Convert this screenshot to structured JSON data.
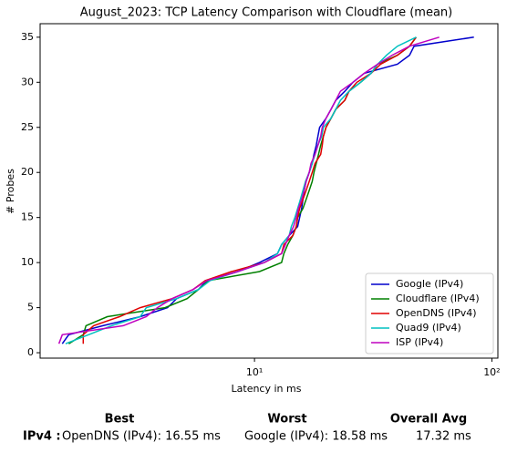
{
  "chart_data": {
    "type": "line",
    "title": "August_2023: TCP Latency Comparison with Cloudflare (mean)",
    "xlabel": "Latency in ms",
    "ylabel": "# Probes",
    "xscale": "log",
    "xlim": [
      1.25,
      106
    ],
    "xticks": [
      {
        "value": 10,
        "label": "10¹"
      },
      {
        "value": 100,
        "label": "10²"
      }
    ],
    "ylim": [
      -0.6,
      36.5
    ],
    "yticks": [
      0,
      5,
      10,
      15,
      20,
      25,
      30,
      35
    ],
    "legend": "lower right",
    "series": [
      {
        "name": "Google (IPv4)",
        "color": "#0000cc",
        "x": [
          1.55,
          1.65,
          2.3,
          3.3,
          4.3,
          4.7,
          5.8,
          6.3,
          8.5,
          10.5,
          12.5,
          13,
          14,
          15.2,
          15.5,
          15.8,
          16,
          16.2,
          16.5,
          17,
          17.5,
          17.8,
          18.2,
          18.5,
          18.8,
          20,
          21,
          22,
          24,
          26,
          29,
          40,
          45,
          47,
          84
        ],
        "values": [
          1,
          2,
          3,
          4,
          5,
          6,
          7,
          8,
          9,
          10,
          11,
          12,
          13,
          14,
          15,
          16,
          17,
          18,
          19,
          20,
          21,
          22,
          23,
          24,
          25,
          26,
          27,
          28,
          29,
          30,
          31,
          32,
          33,
          34,
          35
        ]
      },
      {
        "name": "Cloudflare (IPv4)",
        "color": "#008000",
        "x": [
          1.65,
          1.9,
          1.95,
          2.4,
          4.2,
          5.2,
          5.8,
          6.4,
          10.5,
          13,
          13.3,
          13.8,
          14.5,
          15,
          15.2,
          16,
          16.5,
          17,
          17.5,
          17.8,
          18.2,
          18.6,
          19,
          19.5,
          20,
          21,
          22,
          24,
          25,
          28,
          31,
          33,
          40,
          45,
          48
        ],
        "values": [
          1,
          2,
          3,
          4,
          5,
          6,
          7,
          8,
          9,
          10,
          11,
          12,
          13,
          14,
          15,
          16,
          17,
          18,
          19,
          20,
          21,
          22,
          23,
          24,
          25,
          26,
          27,
          28,
          29,
          30,
          31,
          32,
          33,
          34,
          35
        ]
      },
      {
        "name": "OpenDNS (IPv4)",
        "color": "#e00000",
        "x": [
          1.9,
          1.9,
          2.1,
          2.7,
          3.3,
          4.5,
          5.5,
          6.2,
          8,
          11,
          13,
          13.3,
          14.5,
          15,
          15.2,
          15.5,
          16,
          16.5,
          17,
          17.5,
          18,
          19,
          19.3,
          19.5,
          20,
          21,
          22,
          24,
          25,
          27,
          31,
          34,
          40,
          45,
          48
        ],
        "values": [
          1,
          2,
          3,
          4,
          5,
          6,
          7,
          8,
          9,
          10,
          11,
          12,
          13,
          14,
          15,
          16,
          17,
          18,
          19,
          20,
          21,
          22,
          23,
          24,
          25,
          26,
          27,
          28,
          29,
          30,
          31,
          32,
          33,
          34,
          35
        ]
      },
      {
        "name": "Quad9 (IPv4)",
        "color": "#00c0c0",
        "x": [
          1.6,
          2,
          2.5,
          3.3,
          3.5,
          4.7,
          5.8,
          6.5,
          8.5,
          11,
          12.5,
          13,
          14,
          14.3,
          14.8,
          15.2,
          15.6,
          16,
          16.4,
          17,
          17.5,
          18,
          18.5,
          19.2,
          19.5,
          21,
          22,
          23,
          25,
          28,
          31,
          33,
          36,
          40,
          48
        ],
        "values": [
          1,
          2,
          3,
          4,
          5,
          6,
          7,
          8,
          9,
          10,
          11,
          12,
          13,
          14,
          15,
          16,
          17,
          18,
          19,
          20,
          21,
          22,
          23,
          24,
          25,
          26,
          27,
          28,
          29,
          30,
          31,
          32,
          33,
          34,
          35
        ]
      },
      {
        "name": "ISP (IPv4)",
        "color": "#bf00bf",
        "x": [
          1.5,
          1.55,
          2.8,
          3.5,
          3.9,
          4.5,
          5.5,
          6.3,
          8.5,
          11,
          13,
          13.5,
          14,
          14.6,
          15,
          15.3,
          15.8,
          16.2,
          16.5,
          17,
          17.3,
          18,
          18.5,
          19,
          19.3,
          20,
          21,
          22,
          23,
          26,
          29,
          33,
          38,
          45,
          60
        ],
        "values": [
          1,
          2,
          3,
          4,
          5,
          6,
          7,
          8,
          9,
          10,
          11,
          12,
          13,
          14,
          15,
          16,
          17,
          18,
          19,
          20,
          21,
          22,
          23,
          24,
          25,
          26,
          27,
          28,
          29,
          30,
          31,
          32,
          33,
          34,
          35
        ]
      }
    ]
  },
  "summary": {
    "headers": [
      "Best",
      "Worst",
      "Overall Avg"
    ],
    "row_label": "IPv4 :",
    "best": "OpenDNS (IPv4): 16.55 ms",
    "worst": "Google (IPv4): 18.58 ms",
    "avg": "17.32 ms"
  }
}
